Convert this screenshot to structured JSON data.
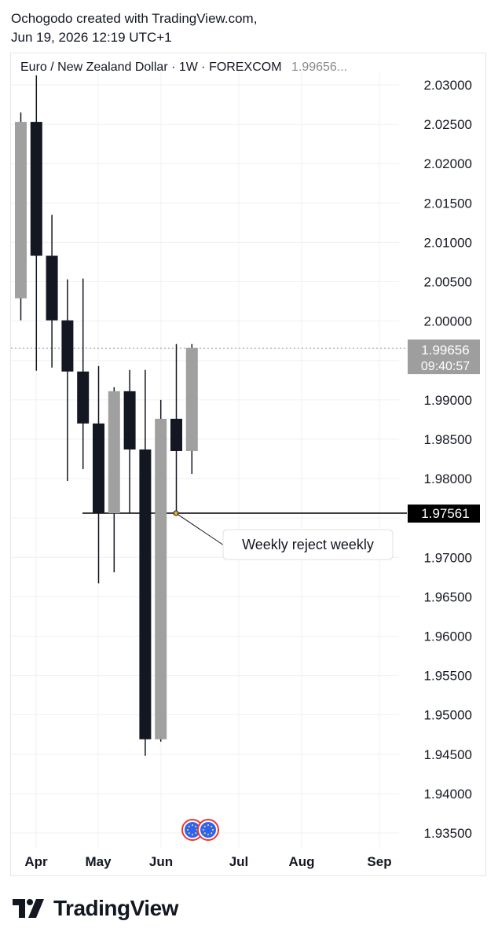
{
  "header": {
    "line1": "Ochogodo created with TradingView.com,",
    "line2": "Jun 19, 2026 12:19 UTC+1"
  },
  "symbol": {
    "name": "Euro / New Zealand Dollar · 1W · FOREXCOM",
    "last": "1.99656..."
  },
  "price_label": {
    "price": "1.99656",
    "countdown": "09:40:57"
  },
  "level_label": "1.97561",
  "annotation": "Weekly reject weekly",
  "footer": {
    "brand": "TradingView"
  },
  "colors": {
    "bullish": "#a0a0a0",
    "bearish": "#131722",
    "grid": "#f0f0f0",
    "price_tag": "#9e9e9e",
    "level_tag": "#000000",
    "event_icon": "#2962ff"
  },
  "icons": [
    "tradingview-logo-icon",
    "eu-flag-event-icon"
  ],
  "chart_data": {
    "type": "candlestick",
    "ylim": [
      1.93,
      2.035
    ],
    "y_ticks": [
      "2.03000",
      "2.02500",
      "2.02000",
      "2.01500",
      "2.01000",
      "2.00500",
      "2.00000",
      "1.99500",
      "1.99000",
      "1.98500",
      "1.98000",
      "1.97500",
      "1.97000",
      "1.96500",
      "1.96000",
      "1.95500",
      "1.95000",
      "1.94500",
      "1.94000",
      "1.93500"
    ],
    "x_ticks": [
      "Apr",
      "May",
      "Jun",
      "Jul",
      "Aug",
      "Sep"
    ],
    "candles": [
      {
        "open": 2.0029,
        "high": 2.0265,
        "low": 2.0001,
        "close": 2.0253
      },
      {
        "open": 2.0253,
        "high": 2.0312,
        "low": 1.9937,
        "close": 2.0083
      },
      {
        "open": 2.0083,
        "high": 2.0135,
        "low": 1.9941,
        "close": 2.0001
      },
      {
        "open": 2.0001,
        "high": 2.0053,
        "low": 1.9797,
        "close": 1.9936
      },
      {
        "open": 1.9936,
        "high": 2.0054,
        "low": 1.9812,
        "close": 1.987
      },
      {
        "open": 1.987,
        "high": 1.9943,
        "low": 1.9667,
        "close": 1.9756
      },
      {
        "open": 1.9756,
        "high": 1.9916,
        "low": 1.9681,
        "close": 1.9911
      },
      {
        "open": 1.9911,
        "high": 1.9938,
        "low": 1.9756,
        "close": 1.9837
      },
      {
        "open": 1.9837,
        "high": 1.9938,
        "low": 1.9448,
        "close": 1.9469
      },
      {
        "open": 1.9469,
        "high": 1.99,
        "low": 1.9466,
        "close": 1.9876
      },
      {
        "open": 1.9876,
        "high": 1.9971,
        "low": 1.9756,
        "close": 1.9835
      },
      {
        "open": 1.9835,
        "high": 1.9971,
        "low": 1.9806,
        "close": 1.9966
      }
    ],
    "current_price": 1.99656,
    "horizontal_level": 1.97561,
    "annotation_text": "Weekly reject weekly"
  }
}
